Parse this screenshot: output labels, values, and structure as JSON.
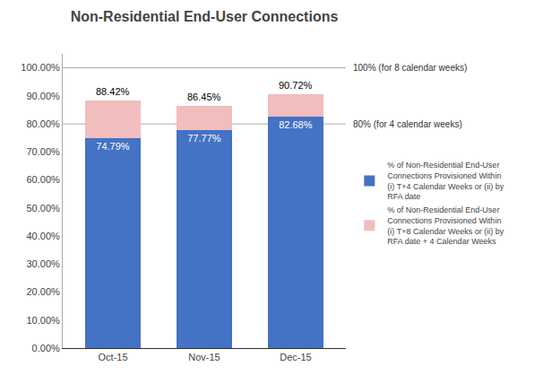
{
  "chart_data": {
    "type": "bar",
    "title": "Non-Residential End-User Connections",
    "categories": [
      "Oct-15",
      "Nov-15",
      "Dec-15"
    ],
    "stacked": true,
    "series": [
      {
        "name": "% of Non-Residential End-User\nConnections Provisioned Within\n(i) T+4 Calendar Weeks or (ii) by\nRFA date",
        "color": "#4472C4",
        "values": [
          74.79,
          77.77,
          82.68
        ],
        "value_labels": [
          "74.79%",
          "77.77%",
          "82.68%"
        ],
        "data_labels": true
      },
      {
        "name": "% of Non-Residential End-User\nConnections Provisioned Within\n(i) T+8 Calendar Weeks or (ii) by\nRFA date + 4 Calendar Weeks",
        "color": "#F2BDBD",
        "values": [
          13.63,
          8.68,
          8.04
        ]
      }
    ],
    "totals": [
      88.42,
      86.45,
      90.72
    ],
    "total_labels": [
      "88.42%",
      "86.45%",
      "90.72%"
    ],
    "reference_lines": [
      {
        "value": 100.0,
        "label": "100% (for 8 calendar weeks)"
      },
      {
        "value": 80.0,
        "label": "80% (for 4 calendar weeks)"
      }
    ],
    "ylim": [
      0,
      105
    ],
    "yticks": [
      {
        "value": 0,
        "label": "0.00%"
      },
      {
        "value": 10,
        "label": "10.00%"
      },
      {
        "value": 20,
        "label": "20.00%"
      },
      {
        "value": 30,
        "label": "30.00%"
      },
      {
        "value": 40,
        "label": "40.00%"
      },
      {
        "value": 50,
        "label": "50.00%"
      },
      {
        "value": 60,
        "label": "60.00%"
      },
      {
        "value": 70,
        "label": "70.00%"
      },
      {
        "value": 80,
        "label": "80.00%"
      },
      {
        "value": 90,
        "label": "90.00%"
      },
      {
        "value": 100,
        "label": "100.00%"
      }
    ],
    "grid": false,
    "legend": "right"
  }
}
